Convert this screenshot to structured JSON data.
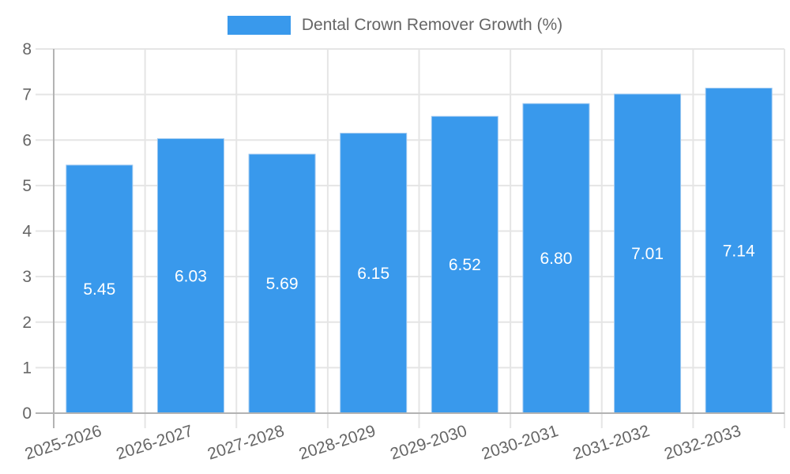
{
  "chart_data": {
    "type": "bar",
    "title": "Dental Crown Remover Growth (%)",
    "legend_label": "Dental Crown Remover Growth (%)",
    "legend_position": "top",
    "categories": [
      "2025-2026",
      "2026-2027",
      "2027-2028",
      "2028-2029",
      "2029-2030",
      "2030-2031",
      "2031-2032",
      "2032-2033"
    ],
    "values": [
      5.45,
      6.03,
      5.69,
      6.15,
      6.52,
      6.8,
      7.01,
      7.14
    ],
    "value_labels": [
      "5.45",
      "6.03",
      "5.69",
      "6.15",
      "6.52",
      "6.80",
      "7.01",
      "7.14"
    ],
    "xlabel": "",
    "ylabel": "",
    "ylim": [
      0,
      8
    ],
    "yticks": [
      0,
      1,
      2,
      3,
      4,
      5,
      6,
      7,
      8
    ],
    "grid": true,
    "colors": {
      "bar": "#3999EC",
      "bar_edge": "#9fc9f1",
      "value_label": "#ffffff",
      "axis_text": "#666666",
      "gridline": "#e5e5e5",
      "axis_line": "#b3b3b3"
    }
  }
}
